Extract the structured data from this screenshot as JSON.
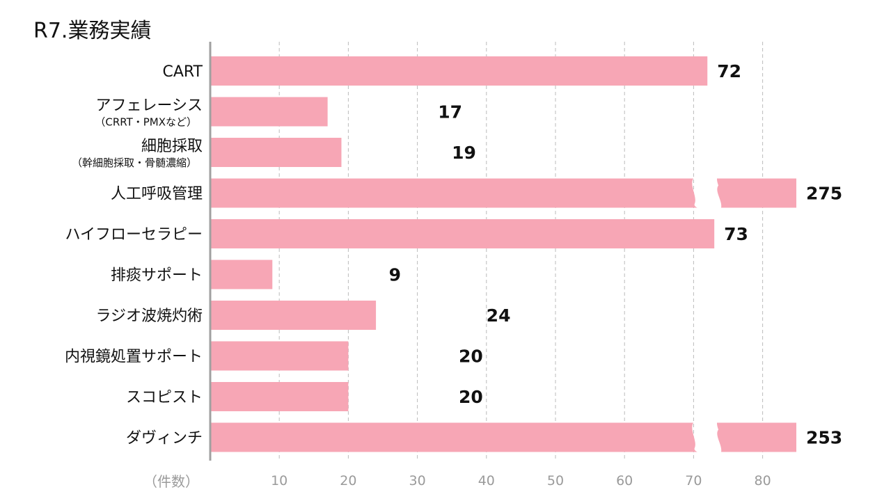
{
  "title": "R7.業務実績",
  "unit_label": "（件数）",
  "chart_data": {
    "type": "bar",
    "orientation": "horizontal",
    "title": "R7.業務実績",
    "xlabel": "（件数）",
    "ylabel": "",
    "xlim": [
      0,
      85
    ],
    "axis_break": [
      71,
      74
    ],
    "x_ticks": [
      "10",
      "20",
      "30",
      "40",
      "50",
      "60",
      "70",
      "80"
    ],
    "grid": "vertical-dashed",
    "categories": [
      "CART",
      "アフェレーシス",
      "細胞採取",
      "人工呼吸管理",
      "ハイフローセラピー",
      "排痰サポート",
      "ラジオ波焼灼術",
      "内視鏡処置サポート",
      "スコピスト",
      "ダヴィンチ"
    ],
    "category_sublabels": [
      "",
      "（CRRT・PMXなど）",
      "（幹細胞採取・骨髄濃縮）",
      "",
      "",
      "",
      "",
      "",
      "",
      ""
    ],
    "values": [
      72,
      17,
      19,
      275,
      73,
      9,
      24,
      20,
      20,
      253
    ],
    "value_labels": [
      "72",
      "17",
      "19",
      "275",
      "73",
      "9",
      "24",
      "20",
      "20",
      "253"
    ],
    "colors": {
      "bar": "#f7a6b5",
      "grid": "#bbbbbb",
      "axis": "#a0a0a0"
    }
  }
}
